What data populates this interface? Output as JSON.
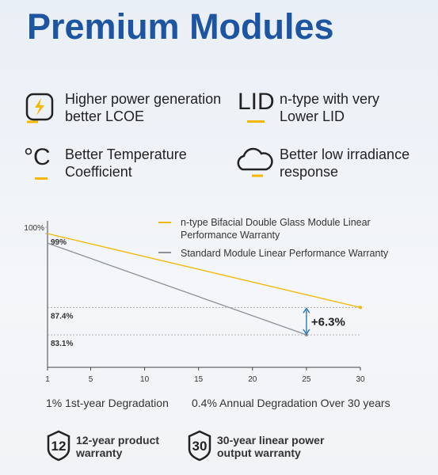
{
  "header": {
    "title": "Premium Modules"
  },
  "features": [
    {
      "text": "Higher power generation better LCOE"
    },
    {
      "icon_text": "LID",
      "text": "n-type with very Lower LID"
    },
    {
      "icon_text": "°C",
      "text": "Better Temperature Coefficient"
    },
    {
      "text": "Better low irradiance response"
    }
  ],
  "chart_data": {
    "type": "line",
    "xlim": [
      1,
      30
    ],
    "xticks": [
      1,
      5,
      10,
      15,
      20,
      25,
      30
    ],
    "ylim": [
      78,
      101
    ],
    "yticks": [
      {
        "value": 100,
        "label": "100%"
      },
      {
        "value": 99,
        "label": "99%"
      },
      {
        "value": 87.4,
        "label": "87.4%"
      },
      {
        "value": 83.1,
        "label": "83.1%"
      }
    ],
    "series": [
      {
        "name": "n-type Bifacial Double Glass Module Linear Performance Warranty",
        "color": "#f5b800",
        "x": [
          1,
          30
        ],
        "values": [
          99,
          87.4
        ]
      },
      {
        "name": "Standard Module Linear Performance Warranty",
        "color": "#8a8f99",
        "x": [
          1,
          25
        ],
        "values": [
          97.5,
          83.1
        ]
      }
    ],
    "annotation": "+6.3%",
    "notes": [
      "1% 1st-year Degradation",
      "0.4% Annual Degradation Over 30 years"
    ]
  },
  "badges": [
    {
      "number": "12",
      "text": "12-year product warranty"
    },
    {
      "number": "30",
      "text": "30-year linear power output warranty"
    }
  ]
}
